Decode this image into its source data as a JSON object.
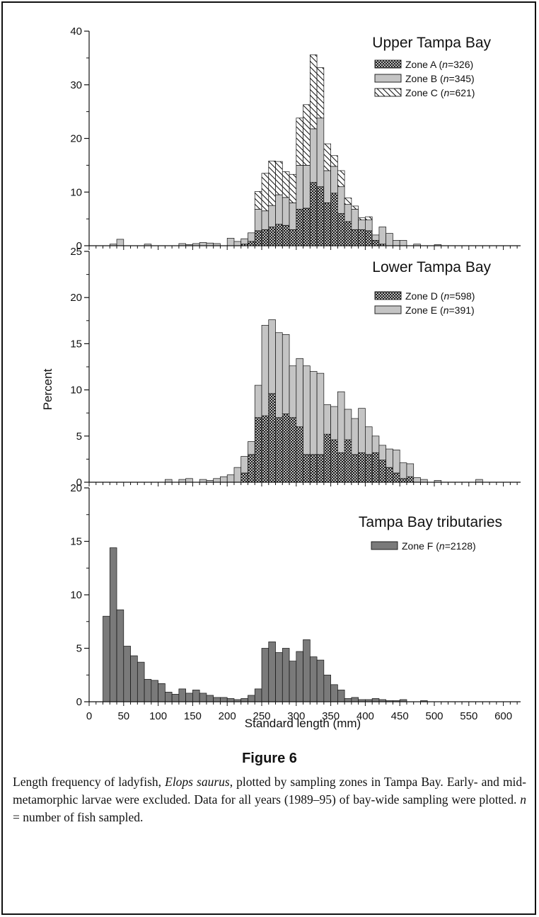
{
  "figure": {
    "label": "Figure 6",
    "caption": {
      "part1": "Length frequency of ladyfish, ",
      "species": "Elops saurus",
      "part2": ", plotted by sampling zones in Tampa Bay. Early- and mid-metamorphic larvae were excluded. Data for all years (1989–95) of bay-wide sampling were plotted. ",
      "n_symbol": "n",
      "part3": " = number of fish sampled."
    }
  },
  "colors": {
    "ink": "#111111",
    "zone_light": "#c4c4c4",
    "zone_dark": "#7a7a7a",
    "background": "#ffffff"
  },
  "chart_data": [
    {
      "type": "bar",
      "stacked": true,
      "title": "Upper Tampa Bay",
      "ylabel": "Percent",
      "xlabel": "Standard length (mm)",
      "ylim": [
        0,
        40
      ],
      "yticks": [
        0,
        10,
        20,
        30,
        40
      ],
      "xlim": [
        0,
        625
      ],
      "bin_width": 10,
      "legend_position": "top-right",
      "x": [
        20,
        30,
        40,
        50,
        60,
        70,
        80,
        90,
        100,
        110,
        120,
        130,
        140,
        150,
        160,
        170,
        180,
        190,
        200,
        210,
        220,
        230,
        240,
        250,
        260,
        270,
        280,
        290,
        300,
        310,
        320,
        330,
        340,
        350,
        360,
        370,
        380,
        390,
        400,
        410,
        420,
        430,
        440,
        450,
        460,
        470,
        480,
        490,
        500,
        510,
        520,
        530,
        540,
        550,
        560,
        570,
        580,
        590,
        600,
        610,
        620
      ],
      "series": [
        {
          "name": "Zone A",
          "n": "326",
          "pattern": "crosshatch",
          "values": [
            0,
            0,
            0,
            0,
            0,
            0,
            0,
            0,
            0,
            0,
            0,
            0,
            0,
            0,
            0,
            0,
            0,
            0,
            0,
            0,
            0.3,
            0.8,
            2.8,
            3.0,
            3.5,
            4.0,
            3.8,
            3.0,
            6.8,
            7.0,
            11.8,
            11.0,
            8.0,
            9.8,
            6.0,
            4.5,
            3.0,
            3.0,
            2.8,
            1.0,
            0.3,
            0,
            0,
            0,
            0,
            0,
            0,
            0,
            0,
            0,
            0,
            0,
            0,
            0,
            0,
            0,
            0,
            0,
            0,
            0,
            0
          ]
        },
        {
          "name": "Zone B",
          "n": "345",
          "pattern": "light-gray",
          "values": [
            0,
            0.3,
            1.2,
            0,
            0,
            0,
            0.3,
            0,
            0,
            0,
            0,
            0.4,
            0.2,
            0.4,
            0.6,
            0.5,
            0.4,
            0,
            1.4,
            0.8,
            1.0,
            1.6,
            4.0,
            3.5,
            4.0,
            5.5,
            5.2,
            5.0,
            8.2,
            8.0,
            10.0,
            12.8,
            6.0,
            5.0,
            5.0,
            3.2,
            3.8,
            1.8,
            2.0,
            1.0,
            3.2,
            2.3,
            1.0,
            1.0,
            0,
            0.3,
            0,
            0,
            0.2,
            0,
            0,
            0,
            0,
            0,
            0,
            0,
            0,
            0,
            0,
            0,
            0
          ]
        },
        {
          "name": "Zone C",
          "n": "621",
          "pattern": "diagonal",
          "values": [
            0,
            0,
            0,
            0,
            0,
            0,
            0,
            0,
            0,
            0,
            0,
            0,
            0,
            0,
            0,
            0,
            0,
            0,
            0,
            0,
            0,
            0,
            3.3,
            7.0,
            8.3,
            6.2,
            4.8,
            5.3,
            8.8,
            11.3,
            13.8,
            9.4,
            5.0,
            2.0,
            3.0,
            1.2,
            0.6,
            0.4,
            0.6,
            0,
            0,
            0,
            0,
            0,
            0,
            0,
            0,
            0,
            0,
            0,
            0,
            0,
            0,
            0,
            0,
            0,
            0,
            0,
            0,
            0,
            0
          ]
        }
      ]
    },
    {
      "type": "bar",
      "stacked": true,
      "title": "Lower Tampa Bay",
      "ylabel": "Percent",
      "xlabel": "Standard length (mm)",
      "ylim": [
        0,
        25
      ],
      "yticks": [
        0,
        5,
        10,
        15,
        20,
        25
      ],
      "xlim": [
        0,
        625
      ],
      "bin_width": 10,
      "legend_position": "top-right",
      "x": [
        20,
        30,
        40,
        50,
        60,
        70,
        80,
        90,
        100,
        110,
        120,
        130,
        140,
        150,
        160,
        170,
        180,
        190,
        200,
        210,
        220,
        230,
        240,
        250,
        260,
        270,
        280,
        290,
        300,
        310,
        320,
        330,
        340,
        350,
        360,
        370,
        380,
        390,
        400,
        410,
        420,
        430,
        440,
        450,
        460,
        470,
        480,
        490,
        500,
        510,
        520,
        530,
        540,
        550,
        560,
        570,
        580,
        590,
        600,
        610,
        620
      ],
      "series": [
        {
          "name": "Zone D",
          "n": "598",
          "pattern": "crosshatch",
          "values": [
            0,
            0,
            0,
            0,
            0,
            0,
            0,
            0,
            0,
            0,
            0,
            0,
            0,
            0,
            0,
            0,
            0,
            0,
            0,
            0,
            1.0,
            3.0,
            7.0,
            7.2,
            9.6,
            7.0,
            7.4,
            7.0,
            6.0,
            3.0,
            3.0,
            3.0,
            5.2,
            4.6,
            3.2,
            4.6,
            3.0,
            3.2,
            3.0,
            3.2,
            2.4,
            1.6,
            1.0,
            0.4,
            0.6,
            0,
            0,
            0,
            0,
            0,
            0,
            0,
            0,
            0,
            0,
            0,
            0,
            0,
            0,
            0,
            0
          ]
        },
        {
          "name": "Zone E",
          "n": "391",
          "pattern": "light-gray",
          "values": [
            0,
            0,
            0,
            0,
            0,
            0,
            0,
            0,
            0,
            0.3,
            0,
            0.3,
            0.4,
            0,
            0.3,
            0.2,
            0.4,
            0.6,
            0.8,
            1.6,
            1.8,
            1.4,
            3.5,
            9.8,
            8.0,
            9.2,
            8.6,
            5.6,
            7.4,
            9.6,
            9.0,
            8.8,
            3.2,
            3.6,
            6.6,
            3.3,
            3.9,
            4.8,
            3.0,
            1.8,
            1.6,
            2.0,
            2.5,
            1.7,
            1.4,
            0.5,
            0.3,
            0,
            0.2,
            0,
            0,
            0,
            0,
            0,
            0.3,
            0,
            0,
            0,
            0,
            0,
            0
          ]
        }
      ]
    },
    {
      "type": "bar",
      "stacked": true,
      "title": "Tampa Bay tributaries",
      "ylabel": "Percent",
      "xlabel": "Standard length (mm)",
      "ylim": [
        0,
        20
      ],
      "yticks": [
        0,
        5,
        10,
        15,
        20
      ],
      "xlim": [
        0,
        625
      ],
      "xticks": [
        0,
        50,
        100,
        150,
        200,
        250,
        300,
        350,
        400,
        450,
        500,
        550,
        600
      ],
      "bin_width": 10,
      "legend_position": "top-right",
      "x": [
        20,
        30,
        40,
        50,
        60,
        70,
        80,
        90,
        100,
        110,
        120,
        130,
        140,
        150,
        160,
        170,
        180,
        190,
        200,
        210,
        220,
        230,
        240,
        250,
        260,
        270,
        280,
        290,
        300,
        310,
        320,
        330,
        340,
        350,
        360,
        370,
        380,
        390,
        400,
        410,
        420,
        430,
        440,
        450,
        460,
        470,
        480,
        490,
        500,
        510,
        520,
        530,
        540,
        550,
        560,
        570,
        580,
        590,
        600,
        610,
        620
      ],
      "series": [
        {
          "name": "Zone F",
          "n": "2128",
          "pattern": "dark-gray",
          "values": [
            8.0,
            14.4,
            8.6,
            5.2,
            4.3,
            3.7,
            2.1,
            2.0,
            1.7,
            0.9,
            0.7,
            1.2,
            0.8,
            1.1,
            0.8,
            0.6,
            0.4,
            0.4,
            0.3,
            0.2,
            0.3,
            0.6,
            1.2,
            5.0,
            5.6,
            4.6,
            5.0,
            3.8,
            4.7,
            5.8,
            4.2,
            3.9,
            2.5,
            1.6,
            1.1,
            0.3,
            0.4,
            0.2,
            0.2,
            0.3,
            0.2,
            0.1,
            0.1,
            0.2,
            0,
            0,
            0.1,
            0,
            0,
            0,
            0,
            0,
            0,
            0,
            0,
            0,
            0,
            0,
            0,
            0,
            0
          ]
        }
      ]
    }
  ]
}
